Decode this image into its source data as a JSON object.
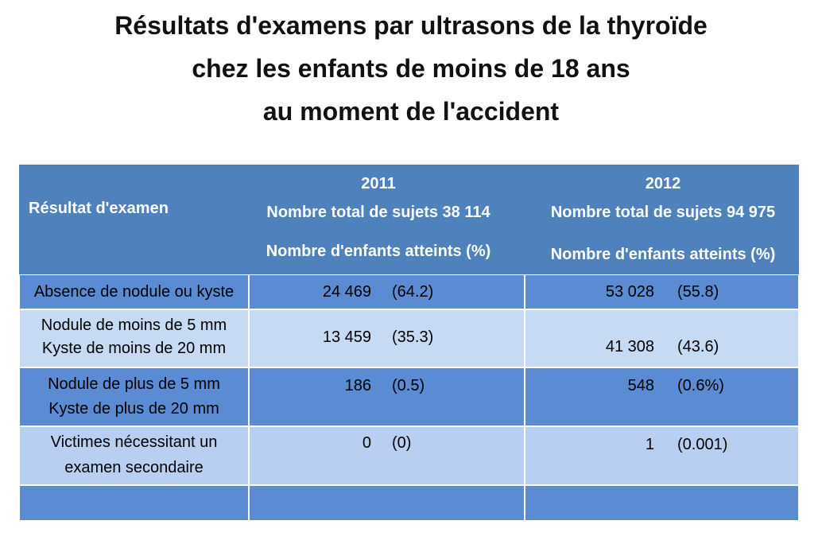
{
  "title": [
    "Résultats d'examens par ultrasons de la thyroïde",
    "chez les enfants de moins de 18 ans",
    "au moment de  l'accident"
  ],
  "table": {
    "header": {
      "label": "Résultat d'examen",
      "columns": [
        {
          "year": "2011",
          "total": "Nombre total de sujets 38 114",
          "unit": "Nombre d'enfants atteints (%)"
        },
        {
          "year": "2012",
          "total": "Nombre total de sujets 94 975",
          "unit": "Nombre d'enfants atteints (%)"
        }
      ]
    },
    "rows": [
      {
        "label": [
          "Absence de nodule ou kyste"
        ],
        "cells": [
          [
            "24 469",
            "(64.2)"
          ],
          [
            "53 028",
            "(55.8)"
          ]
        ]
      },
      {
        "label": [
          "Nodule de moins de 5 mm",
          "Kyste de moins de 20 mm"
        ],
        "cells": [
          [
            "13 459",
            "(35.3)"
          ],
          [
            "41 308",
            "(43.6)"
          ]
        ]
      },
      {
        "label": [
          "Nodule de plus de 5 mm",
          "Kyste de plus de 20 mm"
        ],
        "cells": [
          [
            "186",
            "(0.5)"
          ],
          [
            "548",
            "(0.6%)"
          ]
        ]
      },
      {
        "label": [
          "Victimes nécessitant un",
          "examen secondaire"
        ],
        "cells": [
          [
            "0",
            "(0)"
          ],
          [
            "1",
            "(0.001)"
          ]
        ]
      }
    ]
  }
}
